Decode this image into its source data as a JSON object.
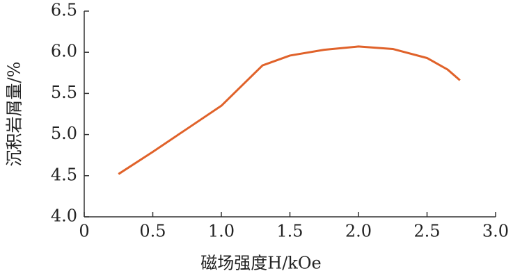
{
  "chart_data": {
    "type": "line",
    "xlabel": "磁场强度H/kOe",
    "ylabel": "沉积岩屑量/%",
    "x": [
      0.25,
      0.5,
      0.75,
      1.0,
      1.3,
      1.5,
      1.75,
      2.0,
      2.25,
      2.5,
      2.65,
      2.74
    ],
    "series": [
      {
        "color": "#e0622a",
        "values": [
          4.52,
          4.79,
          5.07,
          5.35,
          5.84,
          5.96,
          6.03,
          6.07,
          6.04,
          5.93,
          5.79,
          5.66
        ]
      }
    ],
    "xlim": [
      0,
      3.0
    ],
    "ylim": [
      4.0,
      6.5
    ],
    "xticks": [
      0,
      0.5,
      {
        "value": 1,
        "label": "1.0"
      },
      1.5,
      {
        "value": 2,
        "label": "2.0"
      },
      2.5,
      {
        "value": 3,
        "label": "3.0"
      }
    ],
    "yticks": [
      {
        "value": 4,
        "label": "4.0"
      },
      4.5,
      {
        "value": 5,
        "label": "5.0"
      },
      5.5,
      {
        "value": 6,
        "label": "6.0"
      },
      6.5
    ],
    "grid": false
  }
}
